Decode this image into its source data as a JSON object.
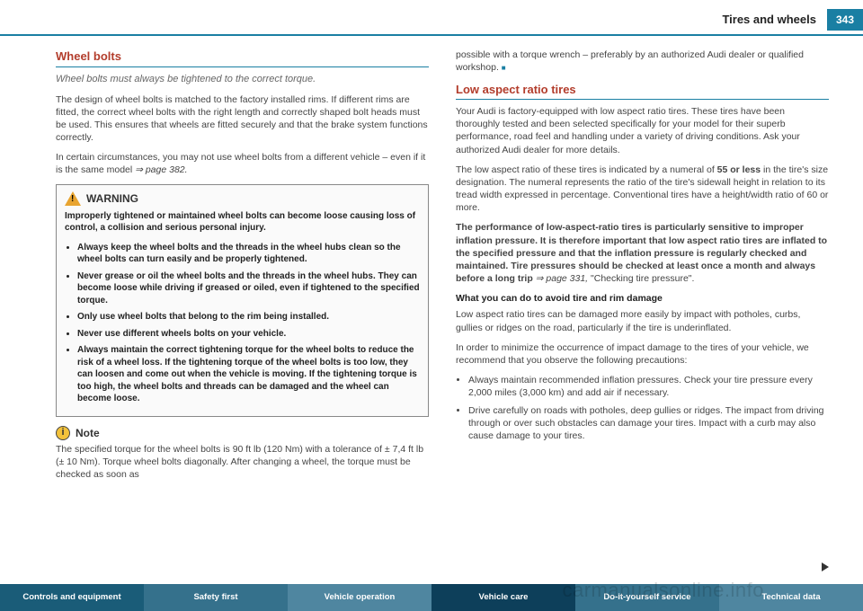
{
  "header": {
    "title": "Tires and wheels",
    "page": "343"
  },
  "left": {
    "h1": "Wheel bolts",
    "sub": "Wheel bolts must always be tightened to the correct torque.",
    "p1": "The design of wheel bolts is matched to the factory installed rims. If different rims are fitted, the correct wheel bolts with the right length and correctly shaped bolt heads must be used. This ensures that wheels are fitted securely and that the brake system functions correctly.",
    "p2a": "In certain circumstances, you may not use wheel bolts from a different vehicle – even if it is the same model ",
    "p2b": "⇒ page 382.",
    "warn_label": "WARNING",
    "w1": "Improperly tightened or maintained wheel bolts can become loose causing loss of control, a collision and serious personal injury.",
    "wb1": "Always keep the wheel bolts and the threads in the wheel hubs clean so the wheel bolts can turn easily and be properly tightened.",
    "wb2": "Never grease or oil the wheel bolts and the threads in the wheel hubs. They can become loose while driving if greased or oiled, even if tightened to the specified torque.",
    "wb3": "Only use wheel bolts that belong to the rim being installed.",
    "wb4": "Never use different wheels bolts on your vehicle.",
    "wb5": "Always maintain the correct tightening torque for the wheel bolts to reduce the risk of a wheel loss. If the tightening torque of the wheel bolts is too low, they can loosen and come out when the vehicle is moving. If the tightening torque is too high, the wheel bolts and threads can be damaged and the wheel can become loose.",
    "note_label": "Note",
    "note_text": "The specified torque for the wheel bolts is 90 ft lb (120 Nm) with a tolerance of ± 7,4 ft lb (± 10 Nm). Torque wheel bolts diagonally. After changing a wheel, the torque must be checked as soon as"
  },
  "right": {
    "cont": "possible with a torque wrench – preferably by an authorized Audi dealer or qualified workshop. ",
    "h2": "Low aspect ratio tires",
    "p1": "Your Audi is factory-equipped with low aspect ratio tires. These tires have been thoroughly tested and been selected specifically for your model for their superb performance, road feel and handling under a variety of driving conditions. Ask your authorized Audi dealer for more details.",
    "p2a": "The low aspect ratio of these tires is indicated by a numeral of ",
    "p2b": "55 or less",
    "p2c": " in the tire's size designation. The numeral represents the ratio of the tire's sidewall height in relation to its tread width expressed in percentage. Conventional tires have a height/width ratio of 60 or more.",
    "p3a": "The performance of low-aspect-ratio tires is particularly sensitive to improper inflation pressure. It is therefore important that low aspect ratio tires are inflated to the specified pressure and that the inflation pressure is regularly checked and maintained. Tire pressures should be checked at least once a month and always before a long trip ",
    "p3b": "⇒ page 331,",
    "p3c": " \"Checking tire pressure\".",
    "sub1": "What you can do to avoid tire and rim damage",
    "p4": "Low aspect ratio tires can be damaged more easily by impact with potholes, curbs, gullies or ridges on the road, particularly if the tire is underinflated.",
    "p5": "In order to minimize the occurrence of impact damage to the tires of your vehicle, we recommend that you observe the following precautions:",
    "b1": "Always maintain recommended inflation pressures. Check your tire pressure every 2,000 miles (3,000 km) and add air if necessary.",
    "b2": "Drive carefully on roads with potholes, deep gullies or ridges. The impact from driving through or over such obstacles can damage your tires. Impact with a curb may also cause damage to your tires."
  },
  "footer": {
    "f1": "Controls and equipment",
    "f2": "Safety first",
    "f3": "Vehicle operation",
    "f4": "Vehicle care",
    "f5": "Do-it-yourself service",
    "f6": "Technical data"
  },
  "watermark": "carmanualsonline.info"
}
